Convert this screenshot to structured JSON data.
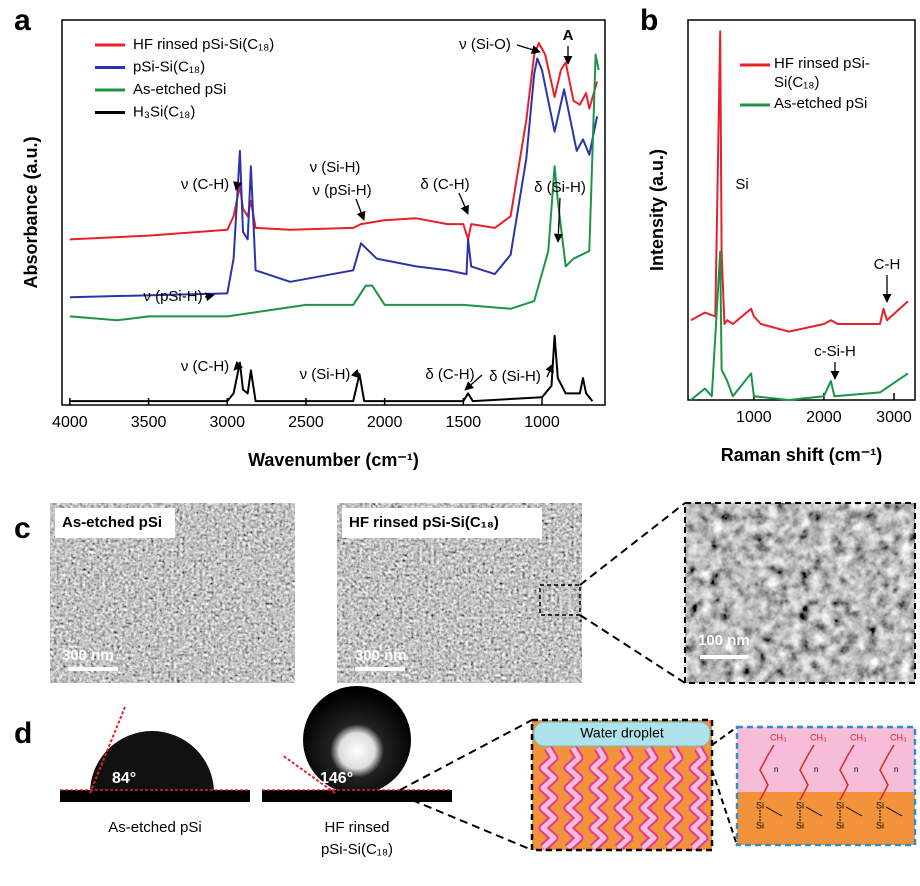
{
  "panel_labels": [
    "a",
    "b",
    "c",
    "d"
  ],
  "chart_data": [
    {
      "type": "line",
      "xlabel": "Wavenumber (cm⁻¹)",
      "ylabel": "Absorbance (a.u.)",
      "xlim": [
        4050,
        600
      ],
      "xticks": [
        4000,
        3500,
        3000,
        2500,
        2000,
        1500,
        1000
      ],
      "ylim": [
        0,
        100
      ],
      "annotations": [
        "ν (Si-O)",
        "A",
        "ν (C-H)",
        "ν (Si-H)",
        "ν (pSi-H)",
        "δ (C-H)",
        "δ (Si-H)",
        "ν (pSi-H)",
        "ν (C-H)",
        "ν (Si-H)",
        "δ (C-H)",
        "δ (Si-H)"
      ],
      "series": [
        {
          "name": "HF rinsed pSi-Si(C₁₈)",
          "color": "#e8202a",
          "x": [
            4000,
            3500,
            3000,
            2960,
            2920,
            2900,
            2870,
            2850,
            2820,
            2600,
            2200,
            2150,
            2000,
            1800,
            1600,
            1500,
            1470,
            1450,
            1300,
            1200,
            1100,
            1050,
            1020,
            980,
            920,
            880,
            850,
            800,
            760,
            720,
            700,
            650
          ],
          "values": [
            43,
            44,
            45.5,
            49,
            57,
            51,
            49,
            53,
            46,
            45.5,
            46,
            47,
            48,
            48.5,
            47,
            47,
            43,
            47,
            46,
            49,
            74,
            91,
            94,
            91,
            80,
            87,
            89,
            79,
            78,
            81,
            77,
            84
          ]
        },
        {
          "name": "pSi-Si(C₁₈)",
          "color": "#2a35a8",
          "x": [
            4000,
            3000,
            2960,
            2920,
            2900,
            2870,
            2850,
            2820,
            2600,
            2200,
            2150,
            2050,
            1800,
            1600,
            1480,
            1470,
            1450,
            1300,
            1200,
            1100,
            1050,
            1030,
            1000,
            920,
            860,
            820,
            780,
            740,
            700,
            650
          ],
          "values": [
            28,
            29,
            38,
            66,
            45,
            43,
            62,
            35,
            32,
            35,
            42,
            38,
            36,
            35,
            34,
            43,
            36,
            34,
            39,
            64,
            86,
            90,
            87,
            71,
            82,
            74,
            66,
            69,
            65,
            75
          ]
        },
        {
          "name": "As-etched pSi",
          "color": "#1c9445",
          "x": [
            4000,
            3700,
            3500,
            3000,
            2500,
            2200,
            2120,
            2080,
            2000,
            1500,
            1200,
            1050,
            960,
            920,
            900,
            850,
            800,
            700,
            660,
            640
          ],
          "values": [
            23,
            22,
            23,
            23,
            26,
            26,
            31,
            31,
            26,
            26,
            25,
            27,
            40,
            62,
            53,
            36,
            38,
            40,
            91,
            87
          ]
        },
        {
          "name": "H₃Si(C₁₈)",
          "color": "#000000",
          "x": [
            4000,
            3000,
            2960,
            2920,
            2900,
            2870,
            2850,
            2820,
            2200,
            2160,
            2130,
            1500,
            1470,
            1440,
            1000,
            940,
            920,
            900,
            850,
            760,
            740,
            720,
            680
          ],
          "values": [
            1,
            1,
            3,
            11,
            4,
            3,
            9,
            1,
            1,
            8,
            1,
            1,
            3,
            1,
            2,
            5,
            18,
            7,
            3,
            3,
            7,
            3,
            1
          ]
        }
      ]
    },
    {
      "type": "line",
      "xlabel": "Raman shift (cm⁻¹)",
      "ylabel": "Intensity (a.u.)",
      "xlim": [
        60,
        3300
      ],
      "xticks": [
        1000,
        2000,
        3000
      ],
      "ylim": [
        0,
        100
      ],
      "annotations": [
        "Si",
        "C-H",
        "c-Si-H"
      ],
      "series": [
        {
          "name": "HF rinsed pSi-Si(C₁₈)",
          "color": "#e8202a",
          "x": [
            100,
            300,
            450,
            520,
            540,
            580,
            620,
            700,
            960,
            1000,
            1100,
            1500,
            2000,
            2100,
            2200,
            2800,
            2850,
            2900,
            3200
          ],
          "values": [
            21,
            23,
            22,
            97,
            39,
            20,
            21,
            20,
            24,
            22,
            20,
            18,
            20,
            21,
            20,
            20,
            24,
            21,
            26
          ]
        },
        {
          "name": "As-etched pSi",
          "color": "#1c9445",
          "x": [
            100,
            300,
            400,
            520,
            540,
            620,
            700,
            960,
            1000,
            1500,
            2000,
            2100,
            2150,
            2800,
            3200
          ],
          "values": [
            0,
            3,
            1,
            39,
            8,
            5,
            1,
            7,
            1,
            0,
            1,
            5,
            1,
            2,
            7
          ]
        }
      ]
    }
  ],
  "sem": {
    "labels": [
      "As-etched pSi",
      "HF rinsed pSi-Si(C₁₈)"
    ],
    "scale_bars": [
      "300 nm",
      "300 nm",
      "100 nm"
    ]
  },
  "contact": {
    "angles": [
      "84°",
      "146°"
    ],
    "captions": [
      [
        "As-etched pSi"
      ],
      [
        "HF rinsed",
        "pSi-Si(C₁₈)"
      ]
    ],
    "droplet": "Water droplet",
    "methyl": "CH₃",
    "n": "n",
    "si": "Si"
  }
}
